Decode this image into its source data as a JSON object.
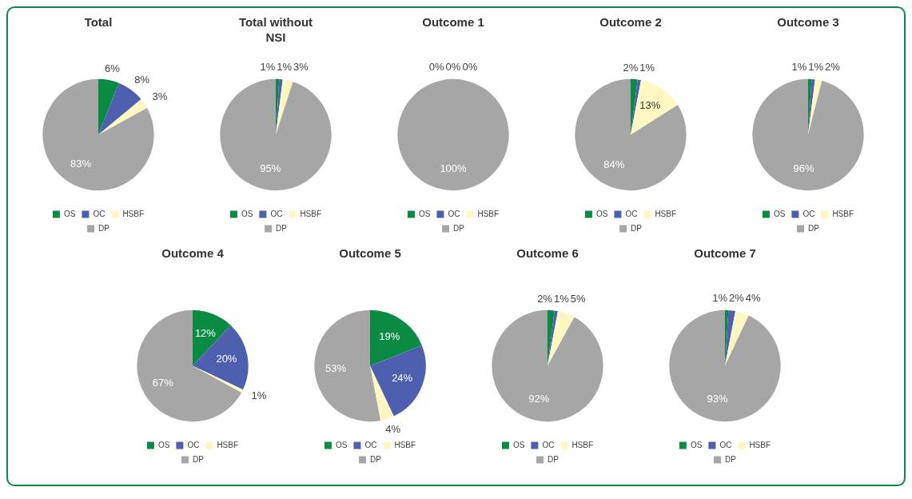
{
  "chart_data": [
    {
      "type": "pie",
      "title": "Total",
      "categories": [
        "OS",
        "OC",
        "HSBF",
        "DP"
      ],
      "values": [
        6,
        8,
        3,
        83
      ],
      "value_labels": [
        "6%",
        "8%",
        "3%",
        "83%"
      ],
      "colors": [
        "#0b8a43",
        "#4f5fb0",
        "#fff7c2",
        "#a6a6a6"
      ],
      "legend": "bottom"
    },
    {
      "type": "pie",
      "title": "Total without NSI",
      "categories": [
        "OS",
        "OC",
        "HSBF",
        "DP"
      ],
      "values": [
        1,
        1,
        3,
        95
      ],
      "value_labels": [
        "1%",
        "1%",
        "3%",
        "95%"
      ],
      "colors": [
        "#0b8a43",
        "#4f5fb0",
        "#fff7c2",
        "#a6a6a6"
      ],
      "legend": "bottom"
    },
    {
      "type": "pie",
      "title": "Outcome  1",
      "categories": [
        "OS",
        "OC",
        "HSBF",
        "DP"
      ],
      "values": [
        0,
        0,
        0,
        100
      ],
      "value_labels": [
        "0%",
        "0%",
        "0%",
        "100%"
      ],
      "colors": [
        "#0b8a43",
        "#4f5fb0",
        "#fff7c2",
        "#a6a6a6"
      ],
      "legend": "bottom"
    },
    {
      "type": "pie",
      "title": "Outcome 2",
      "categories": [
        "OS",
        "OC",
        "HSBF",
        "DP"
      ],
      "values": [
        2,
        1,
        13,
        84
      ],
      "value_labels": [
        "2%",
        "1%",
        "13%",
        "84%"
      ],
      "colors": [
        "#0b8a43",
        "#4f5fb0",
        "#fff7c2",
        "#a6a6a6"
      ],
      "legend": "bottom"
    },
    {
      "type": "pie",
      "title": "Outcome 3",
      "categories": [
        "OS",
        "OC",
        "HSBF",
        "DP"
      ],
      "values": [
        1,
        1,
        2,
        96
      ],
      "value_labels": [
        "1%",
        "1%",
        "2%",
        "96%"
      ],
      "colors": [
        "#0b8a43",
        "#4f5fb0",
        "#fff7c2",
        "#a6a6a6"
      ],
      "legend": "bottom"
    },
    {
      "type": "pie",
      "title": "Outcome 4",
      "categories": [
        "OS",
        "OC",
        "HSBF",
        "DP"
      ],
      "values": [
        12,
        20,
        1,
        67
      ],
      "value_labels": [
        "12%",
        "20%",
        "1%",
        "67%"
      ],
      "colors": [
        "#0b8a43",
        "#4f5fb0",
        "#fff7c2",
        "#a6a6a6"
      ],
      "legend": "bottom"
    },
    {
      "type": "pie",
      "title": "Outcome 5",
      "categories": [
        "OS",
        "OC",
        "HSBF",
        "DP"
      ],
      "values": [
        19,
        24,
        4,
        53
      ],
      "value_labels": [
        "19%",
        "24%",
        "4%",
        "53%"
      ],
      "colors": [
        "#0b8a43",
        "#4f5fb0",
        "#fff7c2",
        "#a6a6a6"
      ],
      "legend": "bottom"
    },
    {
      "type": "pie",
      "title": "Outcome 6",
      "categories": [
        "OS",
        "OC",
        "HSBF",
        "DP"
      ],
      "values": [
        2,
        1,
        5,
        92
      ],
      "value_labels": [
        "2%",
        "1%",
        "5%",
        "92%"
      ],
      "colors": [
        "#0b8a43",
        "#4f5fb0",
        "#fff7c2",
        "#a6a6a6"
      ],
      "legend": "bottom"
    },
    {
      "type": "pie",
      "title": "Outcome 7",
      "categories": [
        "OS",
        "OC",
        "HSBF",
        "DP"
      ],
      "values": [
        1,
        2,
        4,
        93
      ],
      "value_labels": [
        "1%",
        "2%",
        "4%",
        "93%"
      ],
      "colors": [
        "#0b8a43",
        "#4f5fb0",
        "#fff7c2",
        "#a6a6a6"
      ],
      "legend": "bottom"
    }
  ]
}
